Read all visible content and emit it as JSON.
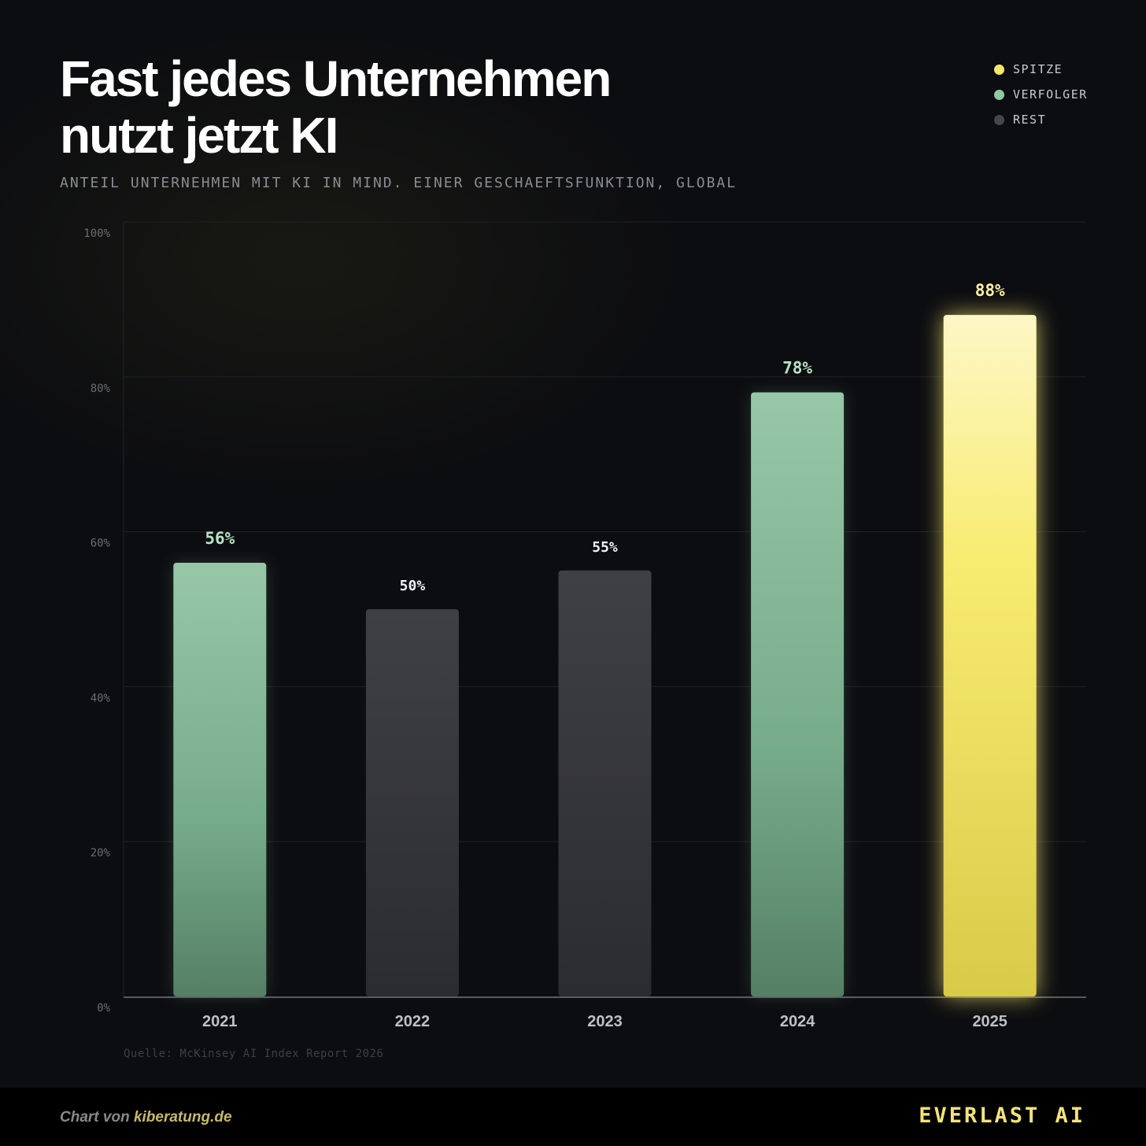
{
  "title_line1": "Fast jedes Unternehmen",
  "title_line2": "nutzt jetzt KI",
  "subtitle": "ANTEIL UNTERNEHMEN MIT KI IN MIND. EINER GESCHAEFTSFUNKTION, GLOBAL",
  "legend": [
    {
      "label": "SPITZE",
      "color": "#f5e66e"
    },
    {
      "label": "VERFOLGER",
      "color": "#8ec9a3"
    },
    {
      "label": "REST",
      "color": "#45464b"
    }
  ],
  "source": "Quelle: McKinsey AI Index Report 2026",
  "credit_prefix": "Chart von ",
  "credit_link": "kiberatung.de",
  "brand": "EVERLAST AI",
  "chart_data": {
    "type": "bar",
    "title": "Fast jedes Unternehmen nutzt jetzt KI",
    "subtitle": "ANTEIL UNTERNEHMEN MIT KI IN MIND. EINER GESCHAEFTSFUNKTION, GLOBAL",
    "categories": [
      "2021",
      "2022",
      "2023",
      "2024",
      "2025"
    ],
    "values": [
      56,
      50,
      55,
      78,
      88
    ],
    "value_labels": [
      "56%",
      "50%",
      "55%",
      "78%",
      "88%"
    ],
    "groups": [
      "VERFOLGER",
      "REST",
      "REST",
      "VERFOLGER",
      "SPITZE"
    ],
    "ylim": [
      0,
      100
    ],
    "yticks": [
      0,
      20,
      40,
      60,
      80,
      100
    ],
    "ytick_labels": [
      "0%",
      "20%",
      "40%",
      "60%",
      "80%",
      "100%"
    ],
    "xlabel": "",
    "ylabel": "",
    "grid": true,
    "legend_position": "top-right"
  }
}
